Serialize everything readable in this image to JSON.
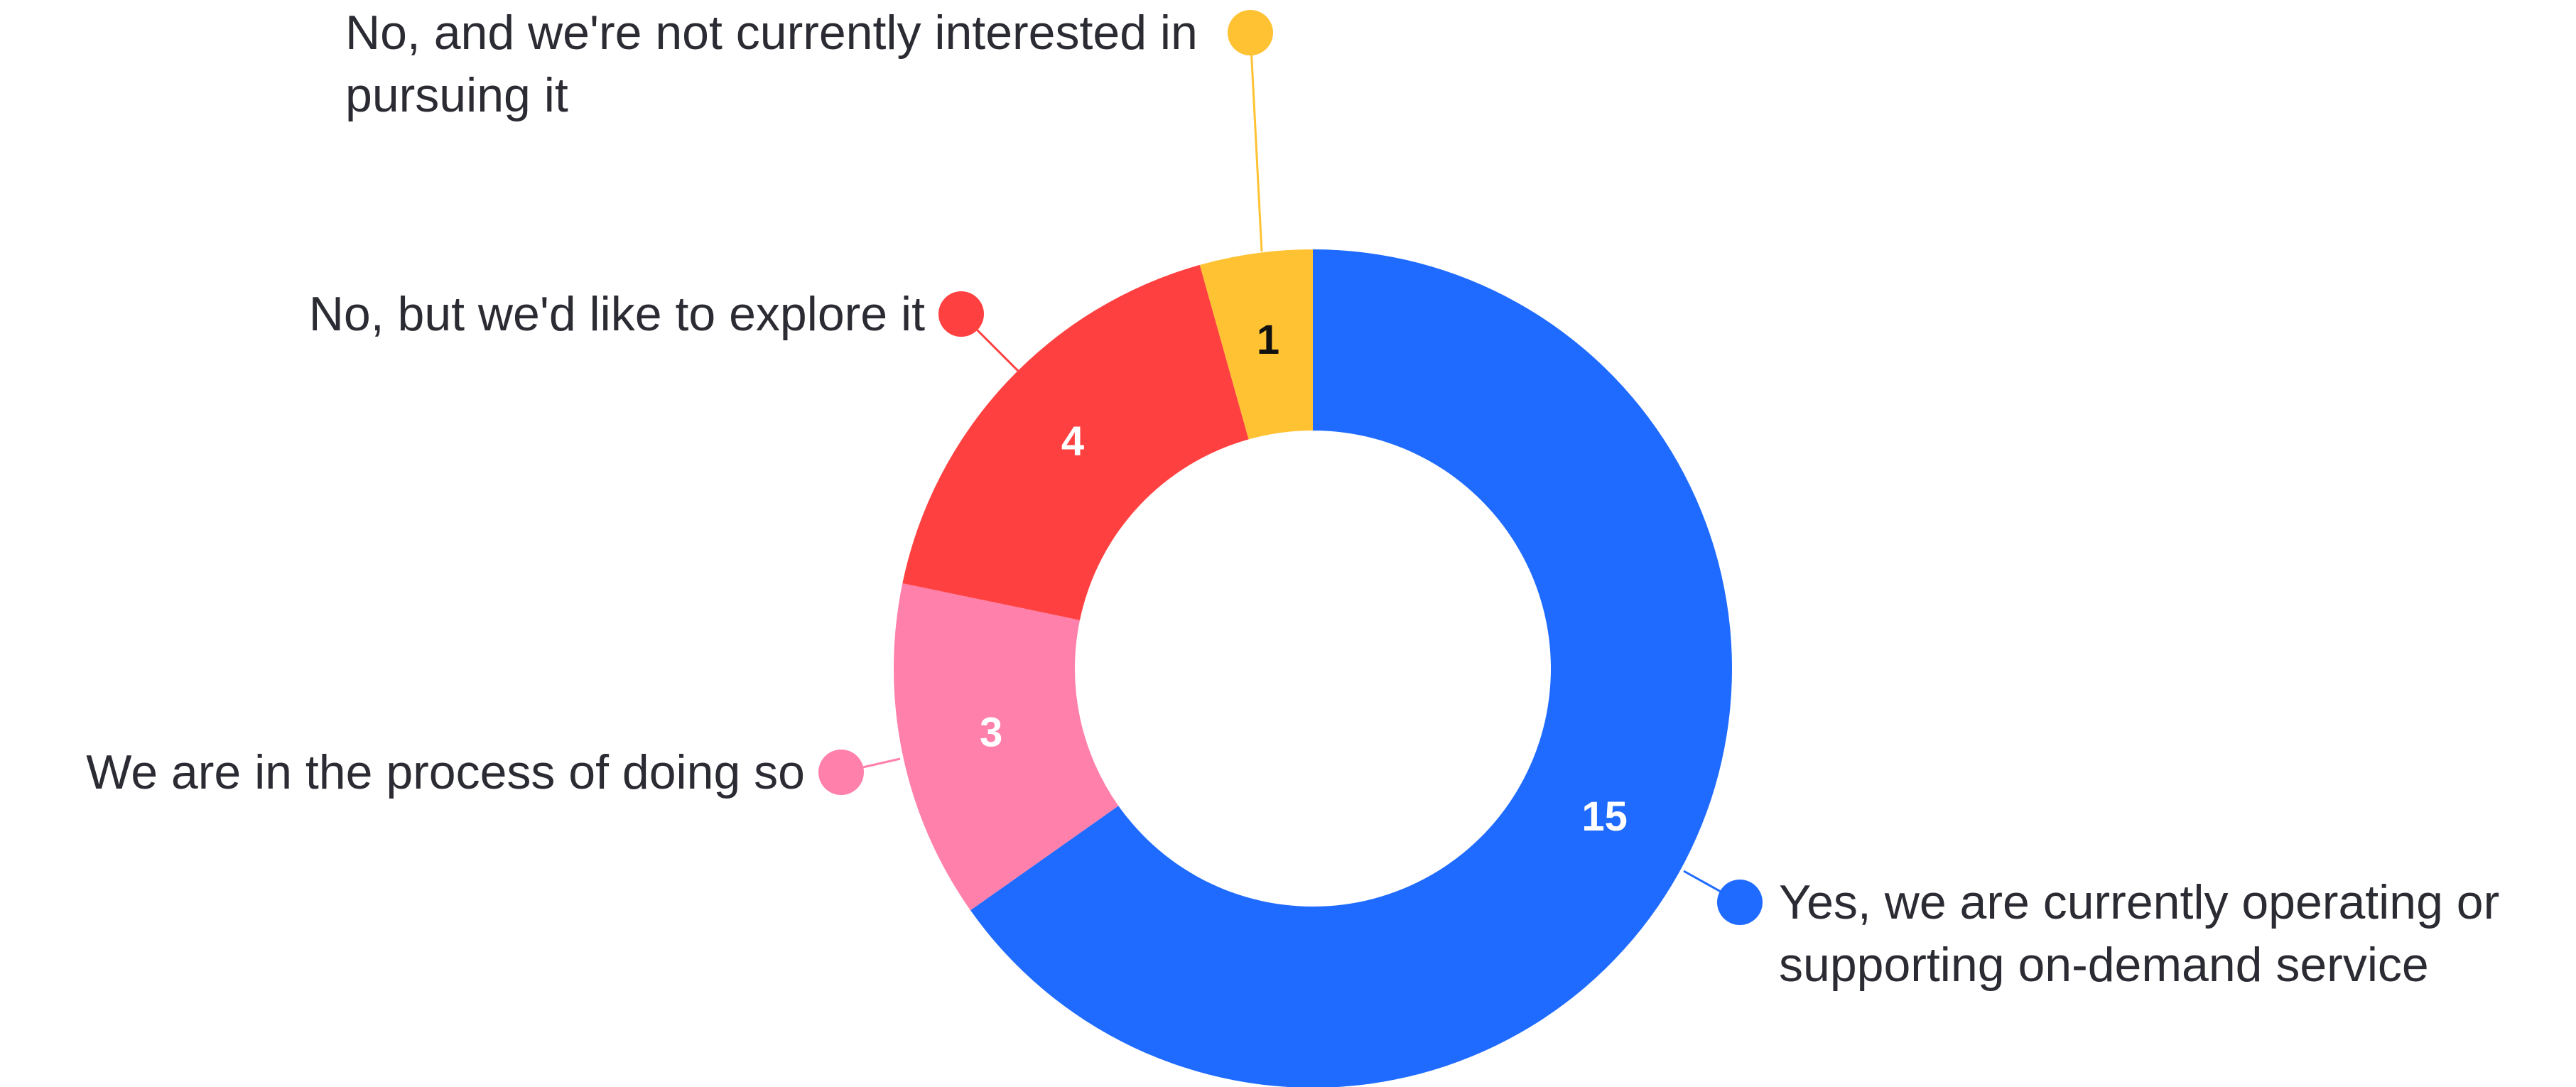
{
  "chart_data": {
    "type": "donut",
    "categories": [
      "Yes, we are currently operating or supporting on-demand service",
      "We are in the process of doing so",
      "No, but we'd like to explore it",
      "No, and we're not currently interested in pursuing it"
    ],
    "values": [
      15,
      3,
      4,
      1
    ],
    "colors": [
      "#1f6bff",
      "#ff80aa",
      "#ff4040",
      "#ffc233"
    ]
  }
}
